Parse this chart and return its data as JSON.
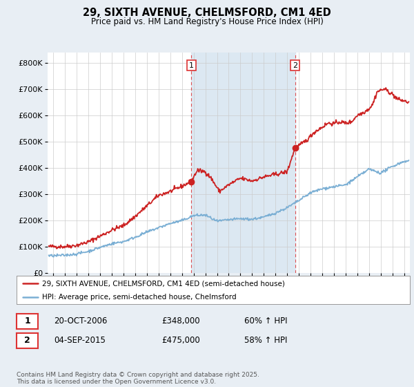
{
  "title": "29, SIXTH AVENUE, CHELMSFORD, CM1 4ED",
  "subtitle": "Price paid vs. HM Land Registry's House Price Index (HPI)",
  "ylabel_ticks": [
    "£0",
    "£100K",
    "£200K",
    "£300K",
    "£400K",
    "£500K",
    "£600K",
    "£700K",
    "£800K"
  ],
  "ytick_values": [
    0,
    100000,
    200000,
    300000,
    400000,
    500000,
    600000,
    700000,
    800000
  ],
  "ylim": [
    0,
    840000
  ],
  "xlim_start": 1994.5,
  "xlim_end": 2025.5,
  "xticks": [
    1995,
    1996,
    1997,
    1998,
    1999,
    2000,
    2001,
    2002,
    2003,
    2004,
    2005,
    2006,
    2007,
    2008,
    2009,
    2010,
    2011,
    2012,
    2013,
    2014,
    2015,
    2016,
    2017,
    2018,
    2019,
    2020,
    2021,
    2022,
    2023,
    2024,
    2025
  ],
  "hpi_color": "#7bafd4",
  "price_color": "#cc2222",
  "vline1_x": 2006.8,
  "vline2_x": 2015.67,
  "vline_color": "#dd3333",
  "marker1_x": 2006.8,
  "marker1_y": 348000,
  "marker2_x": 2015.67,
  "marker2_y": 475000,
  "annotation1_label": "1",
  "annotation2_label": "2",
  "legend_entry1": "29, SIXTH AVENUE, CHELMSFORD, CM1 4ED (semi-detached house)",
  "legend_entry2": "HPI: Average price, semi-detached house, Chelmsford",
  "table_row1": [
    "1",
    "20-OCT-2006",
    "£348,000",
    "60% ↑ HPI"
  ],
  "table_row2": [
    "2",
    "04-SEP-2015",
    "£475,000",
    "58% ↑ HPI"
  ],
  "footnote": "Contains HM Land Registry data © Crown copyright and database right 2025.\nThis data is licensed under the Open Government Licence v3.0.",
  "background_color": "#e8eef4",
  "plot_bg_color": "#ffffff",
  "grid_color": "#cccccc",
  "shaded_region_color": "#dce8f2"
}
